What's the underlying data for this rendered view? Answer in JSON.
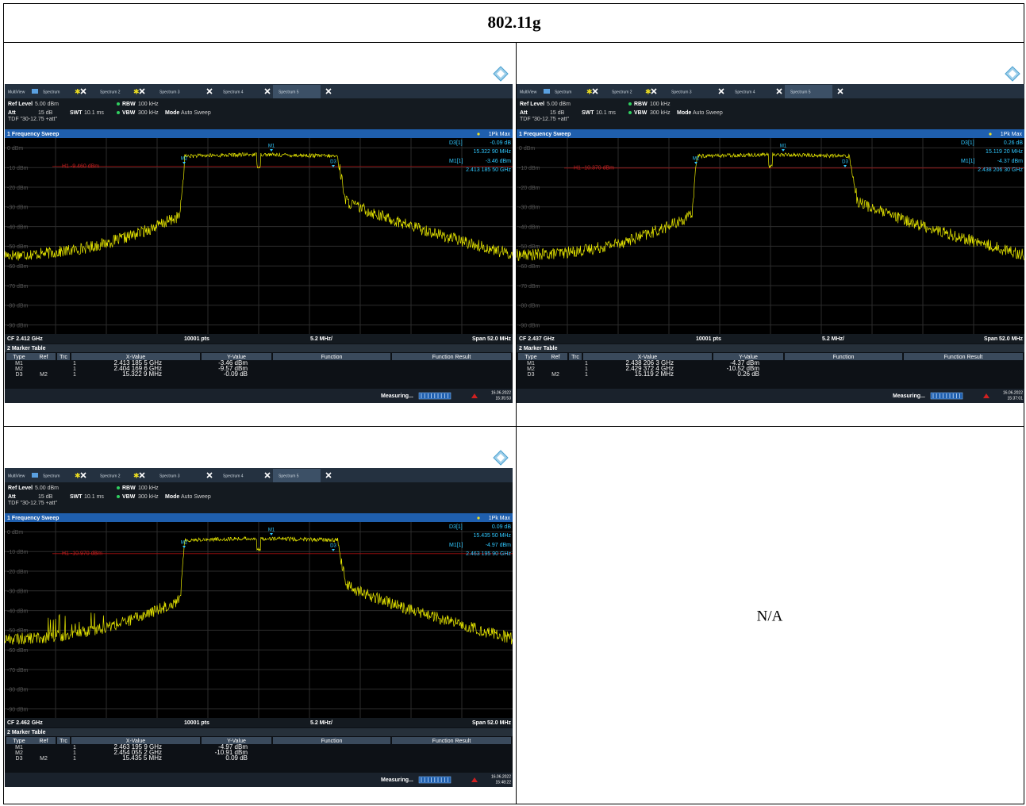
{
  "header": {
    "title": "802.11g"
  },
  "ui": {
    "tabs": [
      "MultiView",
      "Spectrum",
      "Spectrum 2",
      "Spectrum 3",
      "Spectrum 4",
      "Spectrum 5"
    ],
    "ref_level_label": "Ref Level",
    "ref_level": "5.00 dBm",
    "rbw_label": "RBW",
    "rbw": "100 kHz",
    "att_label": "Att",
    "att": "15 dB",
    "swt_label": "SWT",
    "swt": "10.1 ms",
    "vbw_label": "VBW",
    "vbw": "300 kHz",
    "mode_label": "Mode",
    "mode": "Auto Sweep",
    "tdf": "TDF \"30-12.75 +att\"",
    "window_title": "1 Frequency Sweep",
    "trace_mode": "1Pk Max",
    "y_labels": [
      "0 dBm",
      "-10 dBm",
      "-20 dBm",
      "-30 dBm",
      "-40 dBm",
      "-50 dBm",
      "-60 dBm",
      "-70 dBm",
      "-80 dBm",
      "-90 dBm"
    ],
    "points": "10001 pts",
    "div": "5.2 MHz/",
    "span": "Span 52.0 MHz",
    "marker_table_title": "2 Marker Table",
    "table_headers": [
      "Type",
      "Ref",
      "Trc",
      "X-Value",
      "Y-Value",
      "Function",
      "Function Result"
    ],
    "d3_label": "D3[1]",
    "m1_label": "M1[1]",
    "markers": [
      "M1",
      "M2",
      "D3"
    ],
    "status": "Measuring..."
  },
  "screens": [
    {
      "cf": "CF 2.412 GHz",
      "h1": "H1 -9.460 dBm",
      "d3_value": "-0.09 dB",
      "d3_x": "15.322 90 MHz",
      "m1_value": "-3.46 dBm",
      "m1_x": "2.413 185 50 GHz",
      "rows": [
        {
          "type": "M1",
          "trc": "1",
          "x": "2.413 185 5 GHz",
          "y": "-3.46 dBm"
        },
        {
          "type": "M2",
          "trc": "1",
          "x": "2.404 169 6 GHz",
          "y": "-9.57 dBm"
        },
        {
          "type": "D3",
          "ref": "M2",
          "trc": "1",
          "x": "15.322 9 MHz",
          "y": "-0.09 dB"
        }
      ],
      "date": "16.06.2022",
      "time": "15:35:53"
    },
    {
      "cf": "CF 2.437 GHz",
      "h1": "H1 -10.370 dBm",
      "d3_value": "0.26 dB",
      "d3_x": "15.119 20 MHz",
      "m1_value": "-4.37 dBm",
      "m1_x": "2.438 206 30 GHz",
      "rows": [
        {
          "type": "M1",
          "trc": "1",
          "x": "2.438 206 3 GHz",
          "y": "-4.37 dBm"
        },
        {
          "type": "M2",
          "trc": "1",
          "x": "2.429 372 4 GHz",
          "y": "-10.52 dBm"
        },
        {
          "type": "D3",
          "ref": "M2",
          "trc": "1",
          "x": "15.119 2 MHz",
          "y": "0.26 dB"
        }
      ],
      "date": "16.06.2022",
      "time": "15:37:01"
    },
    {
      "cf": "CF 2.462 GHz",
      "h1": "H1 -10.970 dBm",
      "d3_value": "0.09 dB",
      "d3_x": "15.435 50 MHz",
      "m1_value": "-4.97 dBm",
      "m1_x": "2.463 195 90 GHz",
      "rows": [
        {
          "type": "M1",
          "trc": "1",
          "x": "2.463 195 9 GHz",
          "y": "-4.97 dBm"
        },
        {
          "type": "M2",
          "trc": "1",
          "x": "2.454 055 2 GHz",
          "y": "-10.91 dBm"
        },
        {
          "type": "D3",
          "ref": "M2",
          "trc": "1",
          "x": "15.435 5 MHz",
          "y": "0.09 dB"
        }
      ],
      "date": "16.06.2022",
      "time": "15:48:22"
    }
  ],
  "na": "N/A"
}
